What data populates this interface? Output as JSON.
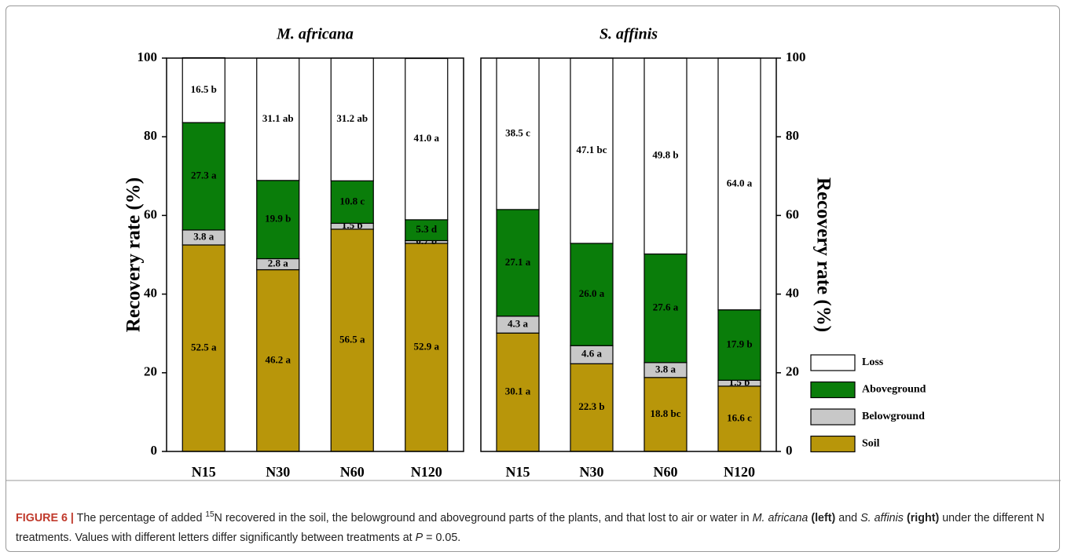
{
  "chart_data": [
    {
      "type": "stacked_bar",
      "title": "M. africana",
      "ylabel": "Recovery rate (%)",
      "yaxis_side": "left",
      "categories": [
        "N15",
        "N30",
        "N60",
        "N120"
      ],
      "ylim": [
        0,
        100
      ],
      "yticks": [
        0,
        20,
        40,
        60,
        80,
        100
      ],
      "series": [
        {
          "color": "#b8960a",
          "values": [
            52.5,
            46.2,
            56.5,
            52.9
          ],
          "value_labels": [
            "52.5 a",
            "46.2 a",
            "56.5 a",
            "52.9 a"
          ]
        },
        {
          "color": "#c8c8c8",
          "values": [
            3.8,
            2.8,
            1.5,
            0.7
          ],
          "value_labels": [
            "3.8 a",
            "2.8 a",
            "1.5 b",
            "0.7 b"
          ]
        },
        {
          "color": "#0a7d0a",
          "values": [
            27.3,
            19.9,
            10.8,
            5.3
          ],
          "value_labels": [
            "27.3 a",
            "19.9 b",
            "10.8 c",
            "5.3 d"
          ]
        },
        {
          "color": "#ffffff",
          "values": [
            16.5,
            31.1,
            31.2,
            41.0
          ],
          "value_labels": [
            "16.5 b",
            "31.1 ab",
            "31.2 ab",
            "41.0 a"
          ]
        }
      ]
    },
    {
      "type": "stacked_bar",
      "title": "S. affinis",
      "ylabel": "Recovery rate (%)",
      "yaxis_side": "right",
      "legend": true,
      "categories": [
        "N15",
        "N30",
        "N60",
        "N120"
      ],
      "ylim": [
        0,
        100
      ],
      "yticks": [
        0,
        20,
        40,
        60,
        80,
        100
      ],
      "series": [
        {
          "name": "Soil",
          "color": "#b8960a",
          "values": [
            30.1,
            22.3,
            18.8,
            16.6
          ],
          "value_labels": [
            "30.1 a",
            "22.3 b",
            "18.8 bc",
            "16.6 c"
          ]
        },
        {
          "name": "Belowground",
          "color": "#c8c8c8",
          "values": [
            4.3,
            4.6,
            3.8,
            1.5
          ],
          "value_labels": [
            "4.3 a",
            "4.6 a",
            "3.8 a",
            "1.5 b"
          ]
        },
        {
          "name": "Aboveground",
          "color": "#0a7d0a",
          "values": [
            27.1,
            26.0,
            27.6,
            17.9
          ],
          "value_labels": [
            "27.1 a",
            "26.0 a",
            "27.6 a",
            "17.9 b"
          ]
        },
        {
          "name": "Loss",
          "color": "#ffffff",
          "values": [
            38.5,
            47.1,
            49.8,
            64.0
          ],
          "value_labels": [
            "38.5 c",
            "47.1 bc",
            "49.8 b",
            "64.0 a"
          ]
        }
      ]
    }
  ],
  "caption": {
    "parts": [
      "FIGURE 6 |",
      "The percentage of added",
      "15",
      "N recovered in the soil, the belowground and aboveground parts of the plants, and that lost to air or water in",
      "M. africana",
      "(left)",
      "and",
      "S. affinis",
      "(right)",
      "under the different N treatments. Values with different letters differ significantly between treatments at",
      "P",
      "= 0.05."
    ]
  }
}
